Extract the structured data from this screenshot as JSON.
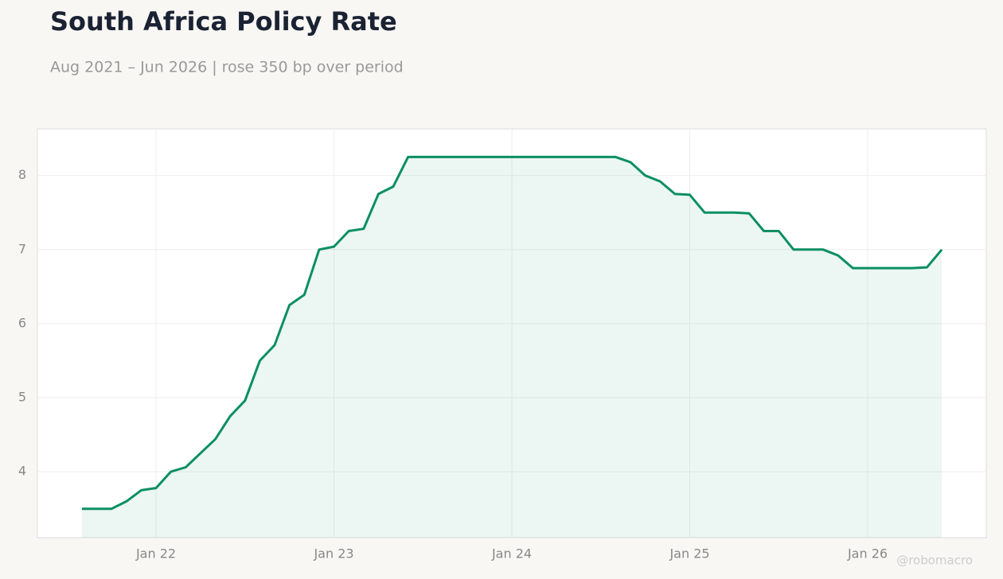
{
  "chart_data": {
    "type": "line",
    "title": "South Africa Policy Rate",
    "subtitle": "Aug 2021 – Jun 2026 | rose 350 bp over period",
    "watermark": "@robomacro",
    "color": "#0a8f62",
    "x": [
      "2021-08",
      "2021-09",
      "2021-10",
      "2021-11",
      "2021-12",
      "2022-01",
      "2022-02",
      "2022-03",
      "2022-04",
      "2022-05",
      "2022-06",
      "2022-07",
      "2022-08",
      "2022-09",
      "2022-10",
      "2022-11",
      "2022-12",
      "2023-01",
      "2023-02",
      "2023-03",
      "2023-04",
      "2023-05",
      "2023-06",
      "2023-07",
      "2023-08",
      "2023-09",
      "2023-10",
      "2023-11",
      "2023-12",
      "2024-01",
      "2024-02",
      "2024-03",
      "2024-04",
      "2024-05",
      "2024-06",
      "2024-07",
      "2024-08",
      "2024-09",
      "2024-10",
      "2024-11",
      "2024-12",
      "2025-01",
      "2025-02",
      "2025-03",
      "2025-04",
      "2025-05",
      "2025-06",
      "2025-07",
      "2025-08",
      "2025-09",
      "2025-10",
      "2025-11",
      "2025-12",
      "2026-01",
      "2026-02",
      "2026-03",
      "2026-04",
      "2026-05",
      "2026-06"
    ],
    "values": [
      3.5,
      3.5,
      3.5,
      3.6,
      3.75,
      3.78,
      4.0,
      4.06,
      4.25,
      4.44,
      4.75,
      4.96,
      5.5,
      5.71,
      6.25,
      6.39,
      7.0,
      7.04,
      7.25,
      7.28,
      7.75,
      7.85,
      8.25,
      8.25,
      8.25,
      8.25,
      8.25,
      8.25,
      8.25,
      8.25,
      8.25,
      8.25,
      8.25,
      8.25,
      8.25,
      8.25,
      8.25,
      8.18,
      8.0,
      7.92,
      7.75,
      7.74,
      7.5,
      7.5,
      7.5,
      7.49,
      7.25,
      7.25,
      7.0,
      7.0,
      7.0,
      6.92,
      6.75,
      6.75,
      6.75,
      6.75,
      6.75,
      6.76,
      7.0
    ],
    "xlim": [
      "2021-05",
      "2026-09"
    ],
    "xticks": [
      {
        "value": "2022-01",
        "label": "Jan 22"
      },
      {
        "value": "2023-01",
        "label": "Jan 23"
      },
      {
        "value": "2024-01",
        "label": "Jan 24"
      },
      {
        "value": "2025-01",
        "label": "Jan 25"
      },
      {
        "value": "2026-01",
        "label": "Jan 26"
      }
    ],
    "ylim": [
      3.11,
      8.63
    ],
    "yticks": [
      4,
      5,
      6,
      7,
      8
    ],
    "grid": true
  }
}
